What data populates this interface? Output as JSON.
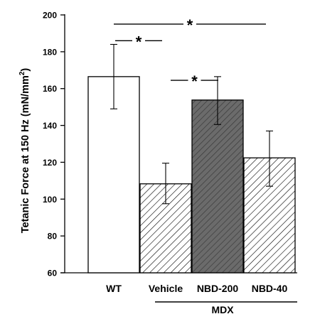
{
  "chart_data": {
    "type": "bar",
    "ylabel_main": "Tetanic Force at 150 Hz (mN/mm",
    "ylabel_sup": "2",
    "ylabel_close": ")",
    "ylim": [
      60,
      200
    ],
    "yticks": [
      "60",
      "80",
      "100",
      "120",
      "140",
      "160",
      "180",
      "200"
    ],
    "categories": [
      "WT",
      "Vehicle",
      "NBD-200",
      "NBD-40"
    ],
    "values": [
      166.5,
      108.3,
      153.8,
      122.4
    ],
    "errors": [
      [
        149,
        184
      ],
      [
        97.5,
        119.5
      ],
      [
        140.5,
        166.5
      ],
      [
        107,
        137
      ]
    ],
    "bar_styles": [
      "open",
      "hatched",
      "dark-hatched",
      "hatched"
    ],
    "colors": {
      "open": "#ffffff",
      "dark": "#6b6b6b",
      "stroke": "#000000"
    },
    "group_label": "MDX",
    "group_categories": [
      1,
      3
    ],
    "significance": [
      {
        "from": 0,
        "to": 3,
        "label": "*",
        "y": 195
      },
      {
        "from": 0,
        "to": 1,
        "label": "*",
        "y": 186
      },
      {
        "from": 1,
        "to": 2,
        "label": "*",
        "y": 164.5
      }
    ]
  }
}
